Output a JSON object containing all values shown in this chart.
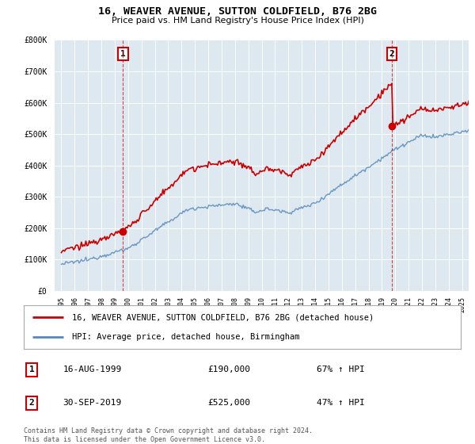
{
  "title": "16, WEAVER AVENUE, SUTTON COLDFIELD, B76 2BG",
  "subtitle": "Price paid vs. HM Land Registry's House Price Index (HPI)",
  "legend_line1": "16, WEAVER AVENUE, SUTTON COLDFIELD, B76 2BG (detached house)",
  "legend_line2": "HPI: Average price, detached house, Birmingham",
  "sale1_label": "1",
  "sale1_date": "16-AUG-1999",
  "sale1_price": "£190,000",
  "sale1_hpi": "67% ↑ HPI",
  "sale1_x": 1999.62,
  "sale1_y": 190000,
  "sale2_label": "2",
  "sale2_date": "30-SEP-2019",
  "sale2_price": "£525,000",
  "sale2_hpi": "47% ↑ HPI",
  "sale2_x": 2019.75,
  "sale2_y": 525000,
  "footnote": "Contains HM Land Registry data © Crown copyright and database right 2024.\nThis data is licensed under the Open Government Licence v3.0.",
  "red_color": "#cc0000",
  "blue_color": "#5588bb",
  "plot_bg_color": "#dde8f0",
  "ylim": [
    0,
    800000
  ],
  "yticks": [
    0,
    100000,
    200000,
    300000,
    400000,
    500000,
    600000,
    700000,
    800000
  ],
  "xlim_start": 1994.5,
  "xlim_end": 2025.5,
  "background_color": "#ffffff",
  "grid_color": "#ffffff"
}
